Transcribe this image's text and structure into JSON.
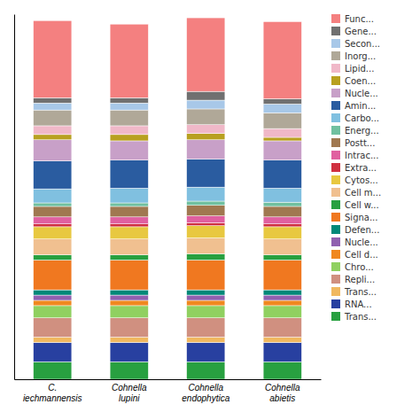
{
  "chart_data": {
    "type": "bar",
    "stacked": true,
    "categories": [
      "C. iechmannensis",
      "Cohnella lupini",
      "Cohnella endophytica",
      "Cohnella abietis"
    ],
    "series": [
      {
        "name": "Trans...",
        "color": "#28A040",
        "values": [
          5.0,
          5.0,
          5.0,
          5.0
        ]
      },
      {
        "name": "RNA...",
        "color": "#2840A0",
        "values": [
          5.5,
          5.5,
          5.5,
          5.5
        ]
      },
      {
        "name": "Trans...",
        "color": "#F0B860",
        "values": [
          1.5,
          1.5,
          1.5,
          1.5
        ]
      },
      {
        "name": "Repli...",
        "color": "#D09080",
        "values": [
          5.5,
          5.5,
          5.5,
          5.5
        ]
      },
      {
        "name": "Chro...",
        "color": "#90D060",
        "values": [
          3.5,
          3.5,
          3.5,
          3.5
        ]
      },
      {
        "name": "Cell d...",
        "color": "#F08820",
        "values": [
          1.5,
          1.5,
          1.5,
          1.5
        ]
      },
      {
        "name": "Nucle...",
        "color": "#9060B0",
        "values": [
          1.5,
          1.5,
          1.5,
          1.5
        ]
      },
      {
        "name": "Defen...",
        "color": "#008878",
        "values": [
          1.5,
          1.5,
          1.5,
          1.5
        ]
      },
      {
        "name": "Signa...",
        "color": "#F07820",
        "values": [
          8.5,
          8.5,
          8.5,
          8.5
        ]
      },
      {
        "name": "Cell w...",
        "color": "#28A040",
        "values": [
          1.5,
          1.5,
          1.8,
          1.5
        ]
      },
      {
        "name": "Cell m...",
        "color": "#F0C090",
        "values": [
          4.5,
          4.5,
          4.5,
          4.5
        ]
      },
      {
        "name": "Cytos...",
        "color": "#E8C840",
        "values": [
          3.5,
          3.5,
          3.5,
          3.5
        ]
      },
      {
        "name": "Extra...",
        "color": "#D03040",
        "values": [
          0.8,
          0.8,
          0.8,
          0.8
        ]
      },
      {
        "name": "Intrac...",
        "color": "#E060A0",
        "values": [
          2.0,
          2.0,
          2.0,
          2.0
        ]
      },
      {
        "name": "Postt...",
        "color": "#A07850",
        "values": [
          3.0,
          3.0,
          3.0,
          3.0
        ]
      },
      {
        "name": "Energ...",
        "color": "#70C0A0",
        "values": [
          1.0,
          1.0,
          1.2,
          1.2
        ]
      },
      {
        "name": "Carbo...",
        "color": "#80C0E0",
        "values": [
          4.0,
          4.2,
          4.0,
          4.0
        ]
      },
      {
        "name": "Amin...",
        "color": "#2A5CA0",
        "values": [
          8.0,
          8.0,
          8.0,
          8.0
        ]
      },
      {
        "name": "Nucle...",
        "color": "#C8A0C8",
        "values": [
          6.0,
          5.5,
          5.5,
          5.5
        ]
      },
      {
        "name": "Coen...",
        "color": "#B8A020",
        "values": [
          1.5,
          1.8,
          1.8,
          1.0
        ]
      },
      {
        "name": "Lipid...",
        "color": "#F0B8C8",
        "values": [
          2.5,
          2.5,
          2.5,
          2.5
        ]
      },
      {
        "name": "Inorg...",
        "color": "#B0A898",
        "values": [
          4.5,
          4.5,
          4.5,
          4.5
        ]
      },
      {
        "name": "Secon...",
        "color": "#A8C8E8",
        "values": [
          2.0,
          2.0,
          2.5,
          2.5
        ]
      },
      {
        "name": "Gene...",
        "color": "#707070",
        "values": [
          1.5,
          1.5,
          2.5,
          1.5
        ]
      },
      {
        "name": "Func...",
        "color": "#F48080",
        "values": [
          22.0,
          21.0,
          21.0,
          22.0
        ]
      }
    ],
    "ylim": [
      0,
      104.131
    ],
    "yticks": [],
    "tick_labels": "x",
    "legend": "right"
  }
}
